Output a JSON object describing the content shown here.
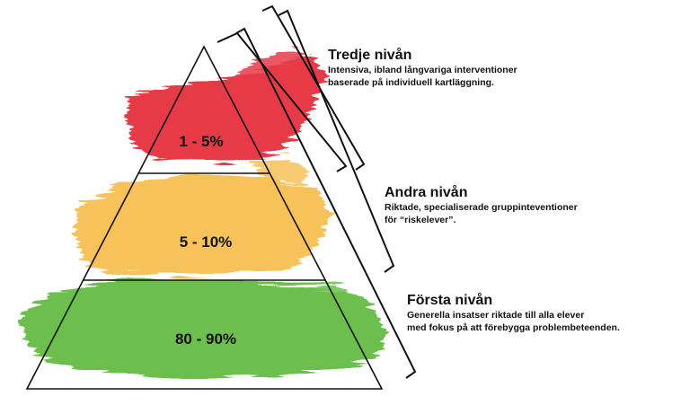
{
  "colors": {
    "red_tier": "#e63b47",
    "yellow_tier": "#f7c25a",
    "green_tier": "#6cbf4d",
    "outline": "#111111"
  },
  "tiers": [
    {
      "percent": "1 - 5%",
      "color": "#e63b47"
    },
    {
      "percent": "5 - 10%",
      "color": "#f7c25a"
    },
    {
      "percent": "80 - 90%",
      "color": "#6cbf4d"
    }
  ],
  "levels": {
    "third": {
      "title": "Tredje nivån",
      "desc_line1": "Intensiva, ibland långvariga interventioner",
      "desc_line2": "baserade på individuell kartläggning."
    },
    "second": {
      "title": "Andra nivån",
      "desc_line1": "Riktade, specialiserade gruppinteventioner",
      "desc_line2": "för “riskelever”."
    },
    "first": {
      "title": "Första nivån",
      "desc_line1": "Generella insatser riktade till alla elever",
      "desc_line2": "med fokus på att förebygga problembeteenden."
    }
  }
}
